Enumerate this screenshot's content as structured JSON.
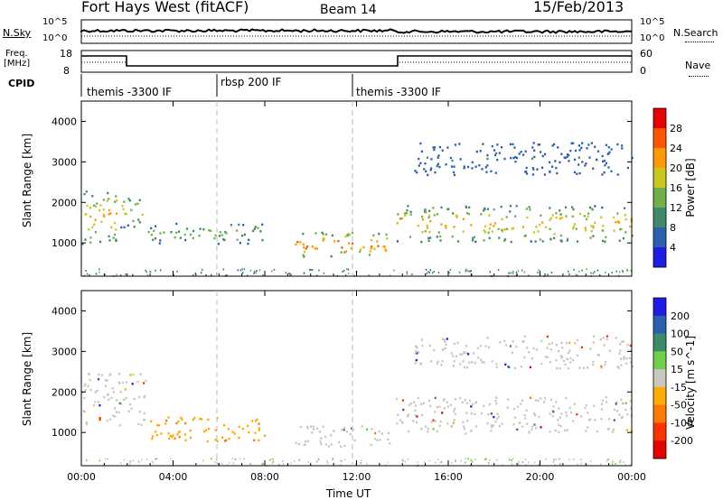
{
  "header": {
    "radar": "Fort Hays West (fitACF)",
    "beam": "Beam 14",
    "date": "15/Feb/2013"
  },
  "nsky_panel": {
    "left_label": "N.Sky",
    "right_label": "N.Search",
    "left_ticks": [
      "10^5",
      "10^0"
    ],
    "right_ticks": [
      "10^5",
      "10^0"
    ]
  },
  "freq_panel": {
    "left_label_line1": "Freq.",
    "left_label_line2": "[MHz]",
    "right_label": "Nave",
    "left_ticks": [
      "18",
      "8"
    ],
    "right_ticks": [
      "60",
      "0"
    ]
  },
  "cpid": {
    "label": "CPID",
    "segments": [
      {
        "name": "themis -3300 IF",
        "start_hour": 0,
        "end_hour": 6
      },
      {
        "name": "rbsp 200 IF",
        "start_hour": 6,
        "end_hour": 12
      },
      {
        "name": "themis -3300 IF",
        "start_hour": 12,
        "end_hour": 24
      }
    ]
  },
  "power_colorbar": {
    "label": "Power [dB]",
    "ticks": [
      "4",
      "8",
      "12",
      "16",
      "20",
      "24",
      "28"
    ],
    "colors": [
      "#1d1de6",
      "#2d5fb0",
      "#3f8a6a",
      "#6fb04a",
      "#c8c81e",
      "#ff9a00",
      "#ff5500",
      "#e60000"
    ]
  },
  "velocity_colorbar": {
    "label": "Velocity [m s^-1]",
    "ticks": [
      "200",
      "100",
      "50",
      "15",
      "-15",
      "-50",
      "-100",
      "-200"
    ],
    "colors": [
      "#1d1de6",
      "#2d5fb0",
      "#3f8a6a",
      "#6fd04a",
      "#c8c8c0",
      "#ffaa00",
      "#ff7a00",
      "#ff3300",
      "#e60000"
    ]
  },
  "x_axis": {
    "label": "Time UT",
    "ticks": [
      "00:00",
      "04:00",
      "08:00",
      "12:00",
      "16:00",
      "20:00",
      "00:00"
    ]
  },
  "chart_data": [
    {
      "type": "heatmap",
      "title": "",
      "xlabel": "",
      "ylabel": "Slant Range [km]",
      "colorbar_label": "Power [dB]",
      "xlim_hours": [
        0,
        24
      ],
      "ylim": [
        180,
        4500
      ],
      "yticks": [
        1000,
        2000,
        3000,
        4000
      ],
      "features": [
        {
          "start_hour": 0.0,
          "end_hour": 1.6,
          "range_low": 1000,
          "range_high": 2400,
          "power_db": 20
        },
        {
          "start_hour": 1.7,
          "end_hour": 2.8,
          "range_low": 1400,
          "range_high": 2200,
          "power_db": 16
        },
        {
          "start_hour": 2.8,
          "end_hour": 8.0,
          "range_low": 1000,
          "range_high": 1500,
          "power_db": 12
        },
        {
          "start_hour": 9.3,
          "end_hour": 13.5,
          "range_low": 650,
          "range_high": 1300,
          "power_db": 24
        },
        {
          "start_hour": 13.7,
          "end_hour": 24.0,
          "range_low": 1050,
          "range_high": 1950,
          "power_db": 20
        },
        {
          "start_hour": 14.5,
          "end_hour": 24.0,
          "range_low": 2700,
          "range_high": 3500,
          "power_db": 4
        }
      ]
    },
    {
      "type": "heatmap",
      "title": "",
      "xlabel": "Time UT",
      "ylabel": "Slant Range [km]",
      "colorbar_label": "Velocity [m s^-1]",
      "xlim_hours": [
        0,
        24
      ],
      "ylim": [
        180,
        4500
      ],
      "yticks": [
        1000,
        2000,
        3000,
        4000
      ],
      "features": [
        {
          "start_hour": 0.0,
          "end_hour": 2.8,
          "range_low": 1200,
          "range_high": 2500,
          "velocity": 0
        },
        {
          "start_hour": 2.8,
          "end_hour": 8.0,
          "range_low": 800,
          "range_high": 1400,
          "velocity": -50
        },
        {
          "start_hour": 9.3,
          "end_hour": 13.5,
          "range_low": 650,
          "range_high": 1200,
          "velocity": 0
        },
        {
          "start_hour": 13.7,
          "end_hour": 24.0,
          "range_low": 1000,
          "range_high": 1900,
          "velocity": 0
        },
        {
          "start_hour": 14.5,
          "end_hour": 24.0,
          "range_low": 2600,
          "range_high": 3400,
          "velocity": 0
        }
      ]
    }
  ]
}
